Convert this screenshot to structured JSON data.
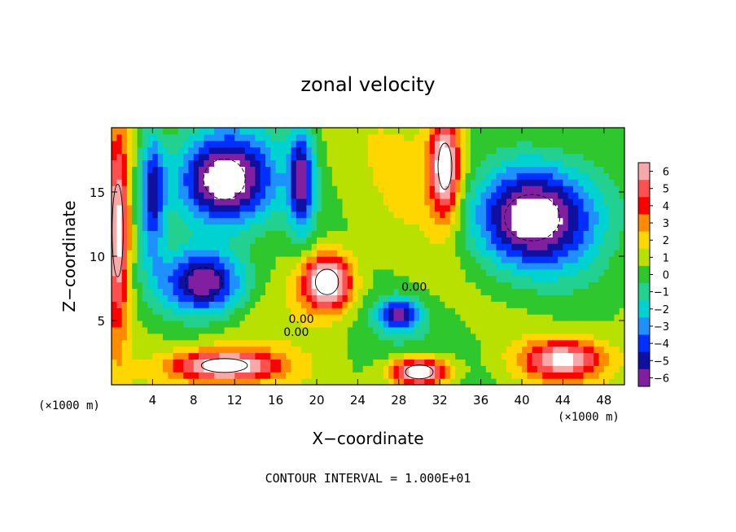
{
  "chart_data": {
    "type": "heatmap",
    "title": "zonal velocity",
    "xlabel": "X−coordinate",
    "ylabel": "Z−coordinate",
    "x_unit_left": "(×1000 m)",
    "x_unit_right": "(×1000 m)",
    "footer": "CONTOUR INTERVAL = 1.000E+01",
    "xlim": [
      0,
      50
    ],
    "ylim": [
      0,
      20
    ],
    "x_ticks": [
      4,
      8,
      12,
      16,
      20,
      24,
      28,
      32,
      36,
      40,
      44,
      48
    ],
    "y_ticks": [
      5,
      10,
      15
    ],
    "colorbar": {
      "levels": [
        6,
        5,
        4,
        3,
        2,
        1,
        0,
        -1,
        -2,
        -3,
        -4,
        -5,
        -6
      ],
      "colors": [
        "#f7a8a8",
        "#ff5050",
        "#ff0000",
        "#ff8c00",
        "#ffd700",
        "#b8e000",
        "#2ec82e",
        "#22d090",
        "#00d2d2",
        "#1e90ff",
        "#0030ff",
        "#1010a0",
        "#8020a0"
      ]
    },
    "contour_labels": [
      "0.00",
      "0.00",
      "0.00"
    ],
    "contour_label_positions": [
      [
        18.5,
        4.8
      ],
      [
        29.5,
        7.3
      ],
      [
        18.0,
        3.8
      ]
    ],
    "velocity_features": [
      {
        "x": 11,
        "z": 16,
        "value": -8,
        "sx": 4.5,
        "sz": 3.5
      },
      {
        "x": 41,
        "z": 13,
        "value": -8,
        "sx": 6,
        "sz": 4
      },
      {
        "x": 9,
        "z": 8,
        "value": -7,
        "sx": 4,
        "sz": 2.5
      },
      {
        "x": 21,
        "z": 8,
        "value": 8,
        "sx": 2.5,
        "sz": 2.2
      },
      {
        "x": 28,
        "z": 5.5,
        "value": -6,
        "sx": 2,
        "sz": 1.2
      },
      {
        "x": 0.6,
        "z": 12,
        "value": 7,
        "sx": 1.2,
        "sz": 8
      },
      {
        "x": 32.5,
        "z": 17,
        "value": 7,
        "sx": 1.5,
        "sz": 4
      },
      {
        "x": 11,
        "z": 1.5,
        "value": 7,
        "sx": 5,
        "sz": 1.2
      },
      {
        "x": 30,
        "z": 1,
        "value": 8,
        "sx": 3,
        "sz": 1.2
      },
      {
        "x": 44,
        "z": 2,
        "value": 6,
        "sx": 4,
        "sz": 1.5
      },
      {
        "x": 18.5,
        "z": 16,
        "value": -6,
        "sx": 1.2,
        "sz": 4
      },
      {
        "x": 4,
        "z": 15,
        "value": -5,
        "sx": 1.2,
        "sz": 5
      }
    ]
  }
}
